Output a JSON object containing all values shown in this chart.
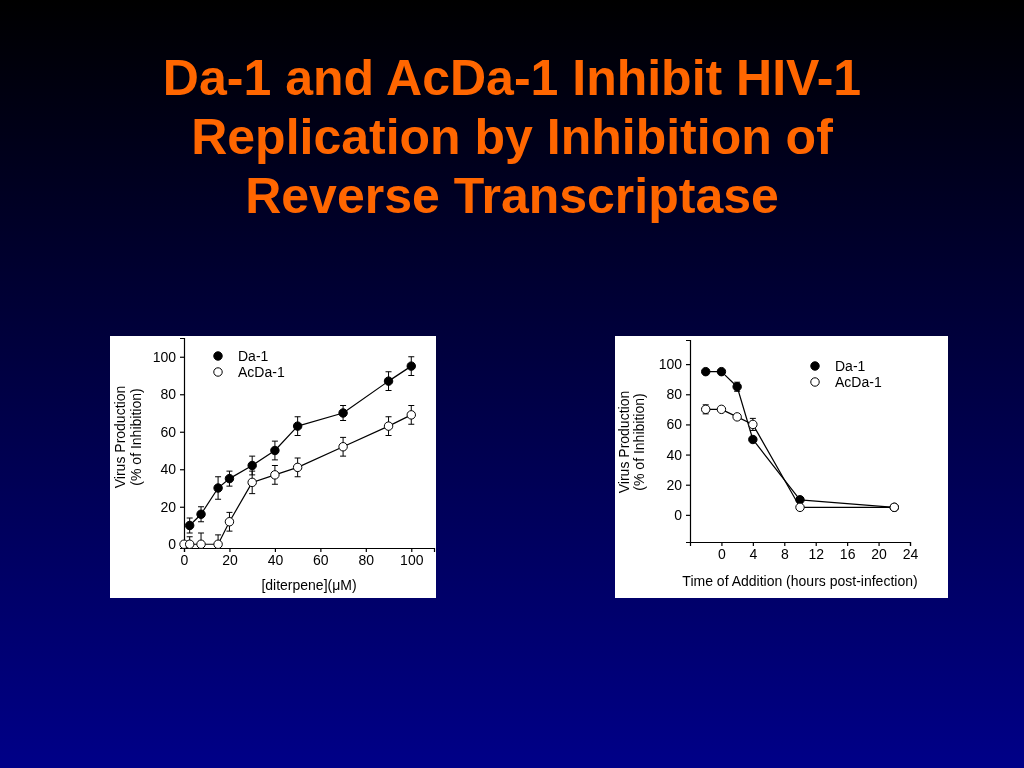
{
  "chart_data": [
    {
      "type": "line",
      "title": "Da-1 and AcDa-1 Inhibit HIV-1 Replication by Inhibition of Reverse Transcriptase",
      "xlabel": "[diterpene](μM)",
      "ylabel": "Virus Production\n(% of Inhibition)",
      "xlim": [
        0,
        110
      ],
      "ylim": [
        -2,
        110
      ],
      "xticks": [
        0,
        20,
        40,
        60,
        80,
        100
      ],
      "yticks": [
        0,
        20,
        40,
        60,
        80,
        100
      ],
      "marker": "circle",
      "line_style": "solid",
      "legend": "top left",
      "series": [
        {
          "name": "Da-1",
          "color": "#000000",
          "x": [
            2.5,
            7.5,
            15,
            20,
            30,
            40,
            50,
            70,
            90,
            100
          ],
          "values": [
            10,
            16,
            30,
            35,
            42,
            50,
            63,
            70,
            87,
            95
          ],
          "errors": [
            4,
            4,
            6,
            4,
            5,
            5,
            5,
            4,
            5,
            5
          ]
        },
        {
          "name": "AcDa-1",
          "color": "#ffffff",
          "x": [
            0,
            2.5,
            7.5,
            15,
            20,
            30,
            40,
            50,
            70,
            90,
            100
          ],
          "values": [
            0,
            0,
            0,
            0,
            12,
            33,
            37,
            41,
            52,
            63,
            69
          ],
          "errors": [
            null,
            [
              0,
              4
            ],
            [
              0,
              6
            ],
            [
              0,
              5
            ],
            5,
            6,
            5,
            5,
            5,
            5,
            5
          ]
        }
      ]
    },
    {
      "type": "line",
      "xlabel": "Time of Addition (hours post-infection)",
      "ylabel": "Virus Production\n(% of Inhibition)",
      "xlim": [
        -4,
        24
      ],
      "ylim": [
        -18,
        116
      ],
      "xticks": [
        0,
        4,
        8,
        12,
        16,
        20,
        24
      ],
      "yticks": [
        0,
        20,
        40,
        60,
        80,
        100
      ],
      "marker": "circle",
      "line_style": "solid",
      "legend": "top right",
      "series": [
        {
          "name": "Da-1",
          "color": "#000000",
          "x": [
            -2,
            0,
            2,
            4,
            10,
            22
          ],
          "values": [
            95,
            95,
            85,
            50,
            10,
            5
          ],
          "errors": [
            null,
            null,
            3,
            null,
            null,
            null
          ]
        },
        {
          "name": "AcDa-1",
          "color": "#ffffff",
          "x": [
            -2,
            0,
            2,
            4,
            10,
            22
          ],
          "values": [
            70,
            70,
            65,
            60,
            5,
            5
          ],
          "errors": [
            3,
            null,
            null,
            4,
            null,
            null
          ]
        }
      ]
    }
  ]
}
